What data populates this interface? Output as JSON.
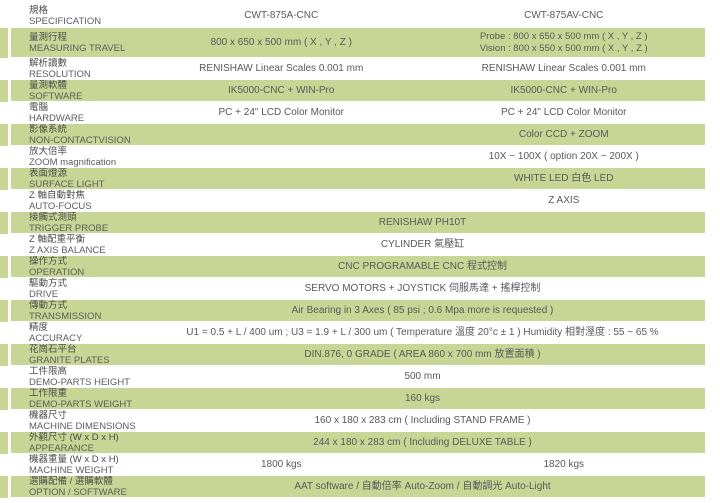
{
  "theme": {
    "row_highlight": "#c7d694",
    "text_color": "#595959"
  },
  "table": {
    "rows": [
      {
        "zh": "規格",
        "en": "SPECIFICATION",
        "left": "CWT-875A-CNC",
        "right": "CWT-875AV-CNC"
      },
      {
        "zh": "量測行程",
        "en": "MEASURING TRAVEL",
        "left": "800 x 650 x 500 mm ( X , Y , Z )",
        "right": "Probe : 800 x 650 x 500 mm ( X , Y , Z )\nVision : 800 x 550 x 500 mm ( X , Y , Z )"
      },
      {
        "zh": "解析讀數",
        "en": "RESOLUTION",
        "left": "RENISHAW Linear Scales 0.001 mm",
        "right": "RENISHAW Linear Scales 0.001 mm"
      },
      {
        "zh": "量測軟體",
        "en": "SOFTWARE",
        "left": "IK5000-CNC + WIN-Pro",
        "right": "IK5000-CNC + WIN-Pro"
      },
      {
        "zh": "電腦",
        "en": "HARDWARE",
        "left": "PC + 24\" LCD Color Monitor",
        "right": "PC + 24\" LCD Color Monitor"
      },
      {
        "zh": "影像系統",
        "en": "NON-CONTACTVISION",
        "left": "",
        "right": "Color CCD + ZOOM"
      },
      {
        "zh": "放大倍率",
        "en": "ZOOM magnification",
        "left": "",
        "right": "10X ~ 100X ( option 20X ~ 200X )"
      },
      {
        "zh": "表面燈源",
        "en": "SURFACE LIGHT",
        "left": "",
        "right": "WHITE LED 白色 LED"
      },
      {
        "zh": "Z 軸自動對焦",
        "en": "AUTO-FOCUS",
        "left": "",
        "right": "Z AXIS"
      },
      {
        "zh": "接觸式測頭",
        "en": "TRIGGER PROBE",
        "span": "RENISHAW PH10T"
      },
      {
        "zh": "Z 軸配重平衡",
        "en": "Z AXIS BALANCE",
        "span": "CYLINDER 氣壓缸"
      },
      {
        "zh": "操作方式",
        "en": "OPERATION",
        "span": "CNC PROGRAMABLE CNC 程式控制"
      },
      {
        "zh": "驅動方式",
        "en": "DRIVE",
        "span": "SERVO MOTORS + JOYSTICK 伺服馬達 + 搖桿控制"
      },
      {
        "zh": "傳動方式",
        "en": "TRANSMISSION",
        "span": "Air Bearing in 3 Axes ( 85 psi ; 0.6 Mpa more is requested )"
      },
      {
        "zh": "精度",
        "en": "ACCURACY",
        "span": "U1 = 0.5 + L / 400 um ; U3 = 1.9 + L / 300 um ( Temperature 溫度 20°c ± 1 ) Humidity 相對溼度 : 55 ~ 65 %"
      },
      {
        "zh": "花崗石平台",
        "en": "GRANITE PLATES",
        "span": "DIN.876, 0 GRADE ( AREA 860 x 700 mm 放置面積 )"
      },
      {
        "zh": "工件限高",
        "en": "DEMO-PARTS HEIGHT",
        "span": "500 mm"
      },
      {
        "zh": "工作限重",
        "en": "DEMO-PARTS WEIGHT",
        "span": "160 kgs"
      },
      {
        "zh": "機器尺寸",
        "en": "MACHINE DIMENSIONS",
        "span": "160 x 180 x 283 cm ( Including STAND FRAME )"
      },
      {
        "zh": "外觀尺寸 (W x D x H)",
        "en": "APPEARANCE",
        "span": "244 x 180 x 283 cm ( Including DELUXE TABLE )"
      },
      {
        "zh": "機器重量 (W x D x H)",
        "en": "MACHINE WEIGHT",
        "left": "1800 kgs",
        "right": "1820 kgs"
      },
      {
        "zh": "選購配備 / 選購軟體",
        "en": "OPTION / SOFTWARE",
        "span": "AAT software / 自動倍率 Auto-Zoom / 自動調光 Auto-Light"
      }
    ]
  }
}
